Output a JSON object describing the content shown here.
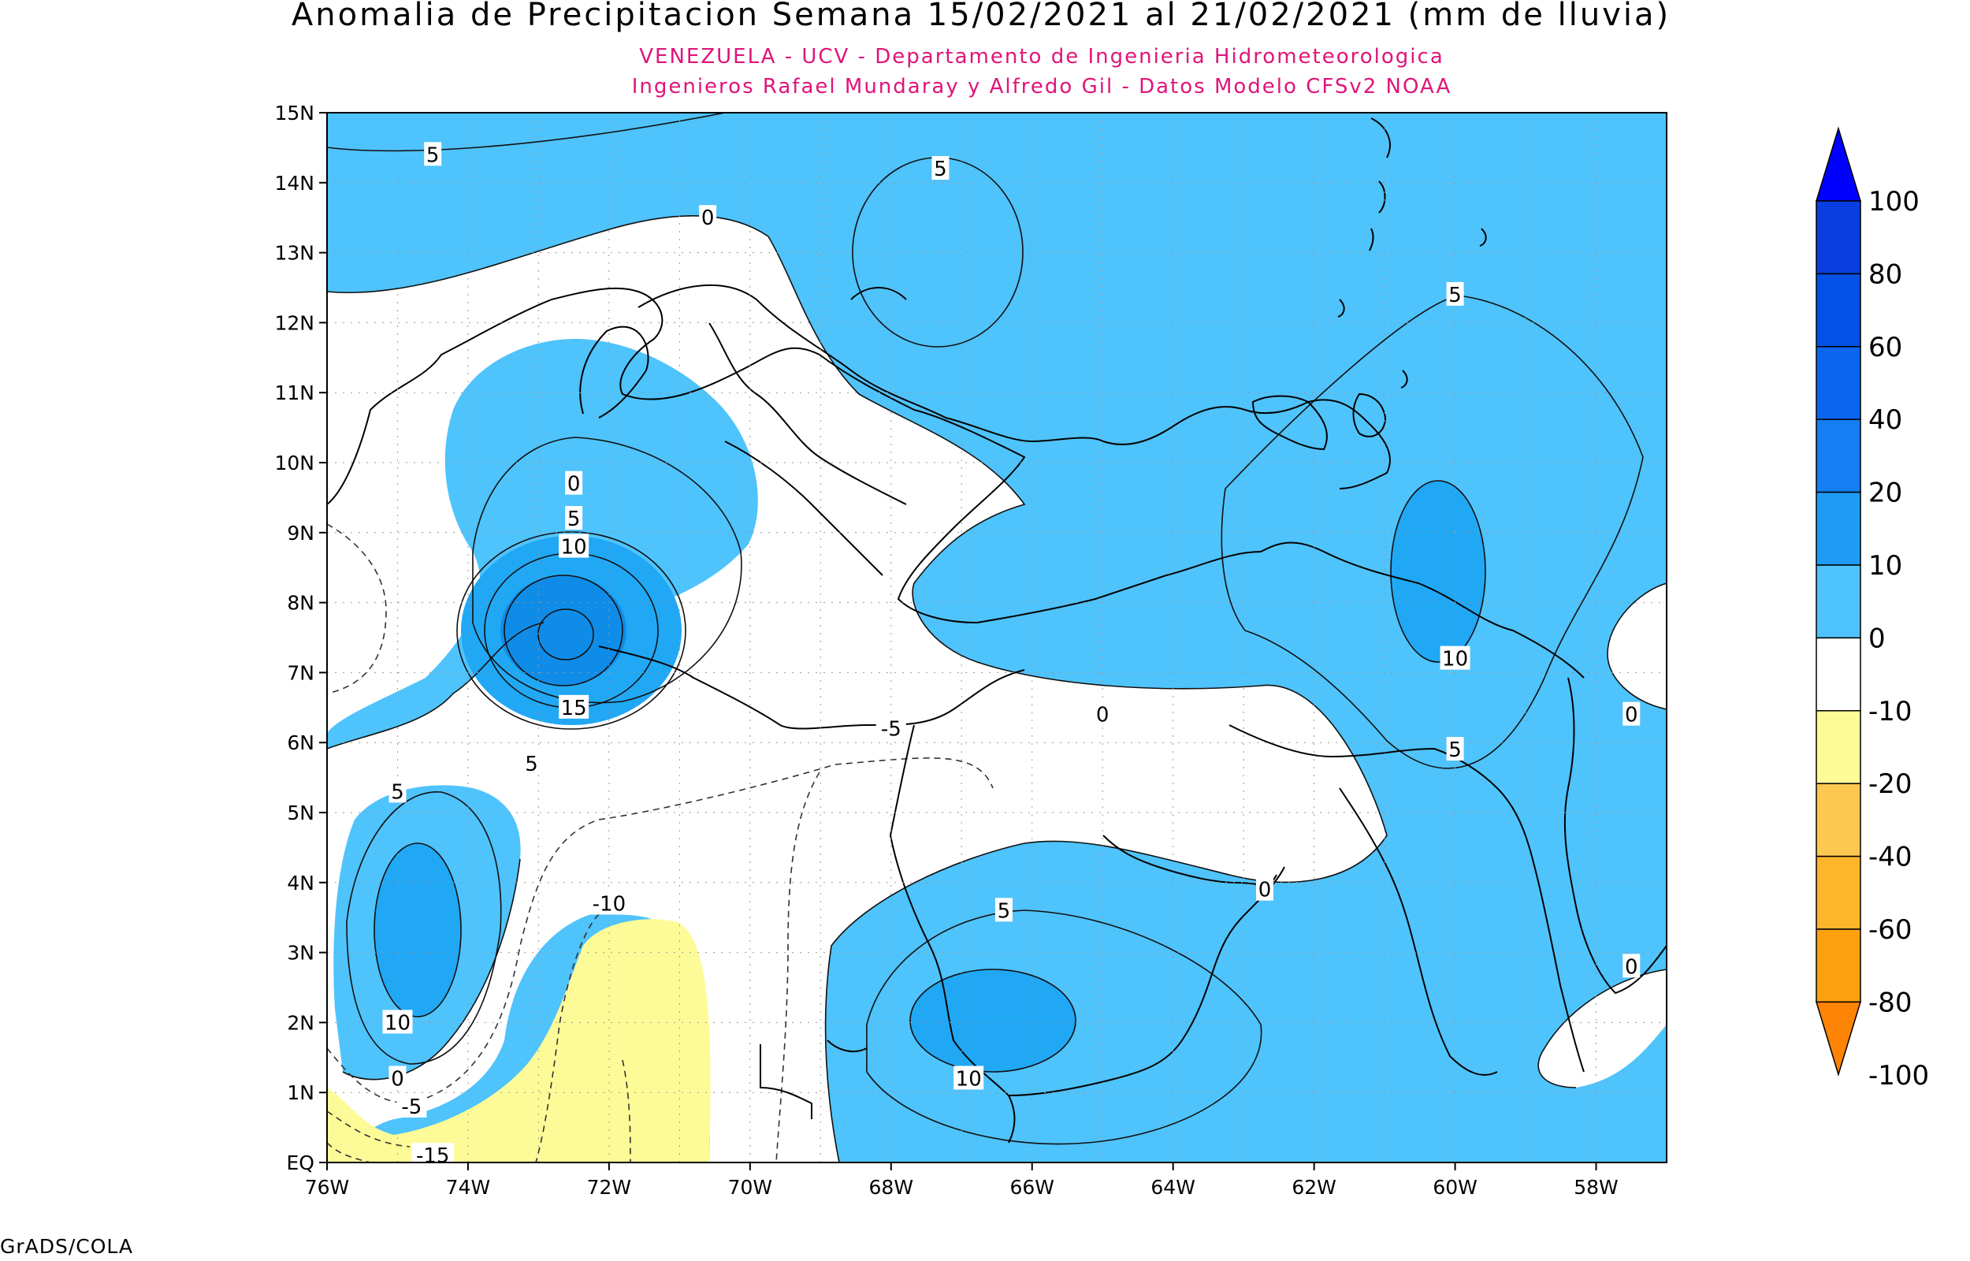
{
  "title": "Anomalia de Precipitacion Semana 15/02/2021 al 21/02/2021 (mm de lluvia)",
  "subtitle_line1": "VENEZUELA - UCV - Departamento de Ingenieria Hidrometeorologica",
  "subtitle_line2": "Ingenieros Rafael Mundaray y Alfredo Gil - Datos Modelo CFSv2 NOAA",
  "footer": "GrADS/COLA",
  "colors": {
    "subtitle": "#e0147a",
    "positive": "#4fc3fb",
    "strong": "#21a8f5",
    "stronger": "#0f8ce8",
    "negative": "#fdfb97"
  },
  "map": {
    "lon_range": [
      -76,
      -57
    ],
    "lat_range": [
      0,
      15
    ],
    "lon_ticks": [
      "76W",
      "74W",
      "72W",
      "70W",
      "68W",
      "66W",
      "64W",
      "62W",
      "60W",
      "58W"
    ],
    "lat_ticks": [
      "EQ",
      "1N",
      "2N",
      "3N",
      "4N",
      "5N",
      "6N",
      "7N",
      "8N",
      "9N",
      "10N",
      "11N",
      "12N",
      "13N",
      "14N",
      "15N"
    ]
  },
  "colorbar": {
    "labels": [
      "100",
      "80",
      "60",
      "40",
      "20",
      "10",
      "0",
      "-10",
      "-20",
      "-40",
      "-60",
      "-80",
      "-100"
    ],
    "colors": [
      "#0000ff",
      "#0a3ee0",
      "#0550e6",
      "#0a66ee",
      "#147ef2",
      "#1e9cf5",
      "#4fc3fb",
      "#ffffff",
      "#fdfb97",
      "#fdc84f",
      "#fdb52a",
      "#fda00f",
      "#fd8405"
    ]
  },
  "contour_labels": [
    {
      "text": "5",
      "lon": -74.5,
      "lat": 14.4
    },
    {
      "text": "0",
      "lon": -70.6,
      "lat": 13.5
    },
    {
      "text": "5",
      "lon": -67.3,
      "lat": 14.2
    },
    {
      "text": "5",
      "lon": -60.0,
      "lat": 12.4
    },
    {
      "text": "0",
      "lon": -72.5,
      "lat": 9.7
    },
    {
      "text": "5",
      "lon": -72.5,
      "lat": 9.2
    },
    {
      "text": "10",
      "lon": -72.5,
      "lat": 8.8
    },
    {
      "text": "15",
      "lon": -72.5,
      "lat": 6.5
    },
    {
      "text": "5",
      "lon": -73.1,
      "lat": 5.7
    },
    {
      "text": "5",
      "lon": -75.0,
      "lat": 5.3
    },
    {
      "text": "10",
      "lon": -75.0,
      "lat": 2.0
    },
    {
      "text": "0",
      "lon": -75.0,
      "lat": 1.2
    },
    {
      "text": "-5",
      "lon": -74.8,
      "lat": 0.8
    },
    {
      "text": "-15",
      "lon": -74.5,
      "lat": 0.1
    },
    {
      "text": "-10",
      "lon": -72.0,
      "lat": 3.7
    },
    {
      "text": "-5",
      "lon": -68.0,
      "lat": 6.2
    },
    {
      "text": "0",
      "lon": -65.0,
      "lat": 6.4
    },
    {
      "text": "10",
      "lon": -60.0,
      "lat": 7.2
    },
    {
      "text": "5",
      "lon": -60.0,
      "lat": 5.9
    },
    {
      "text": "0",
      "lon": -57.5,
      "lat": 6.4
    },
    {
      "text": "5",
      "lon": -66.4,
      "lat": 3.6
    },
    {
      "text": "10",
      "lon": -66.9,
      "lat": 1.2
    },
    {
      "text": "0",
      "lon": -62.7,
      "lat": 3.9
    },
    {
      "text": "0",
      "lon": -57.5,
      "lat": 2.8
    }
  ]
}
